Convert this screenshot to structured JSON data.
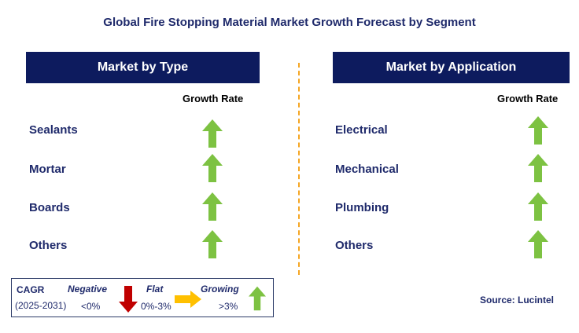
{
  "title": "Global Fire Stopping Material Market Growth Forecast by Segment",
  "left_panel": {
    "header": "Market by Type",
    "growth_label": "Growth Rate",
    "items": [
      {
        "label": "Sealants",
        "trend": "growing"
      },
      {
        "label": "Mortar",
        "trend": "growing"
      },
      {
        "label": "Boards",
        "trend": "growing"
      },
      {
        "label": "Others",
        "trend": "growing"
      }
    ]
  },
  "right_panel": {
    "header": "Market by Application",
    "growth_label": "Growth Rate",
    "items": [
      {
        "label": "Electrical",
        "trend": "growing"
      },
      {
        "label": "Mechanical",
        "trend": "growing"
      },
      {
        "label": "Plumbing",
        "trend": "growing"
      },
      {
        "label": "Others",
        "trend": "growing"
      }
    ]
  },
  "legend": {
    "cagr_label": "CAGR",
    "period": "(2025-2031)",
    "negative_label": "Negative",
    "negative_range": "<0%",
    "flat_label": "Flat",
    "flat_range": "0%-3%",
    "growing_label": "Growing",
    "growing_range": ">3%"
  },
  "source": "Source: Lucintel",
  "colors": {
    "header_bg": "#0d1b5e",
    "title_text": "#1f2a6b",
    "growing_arrow": "#7dc242",
    "negative_arrow": "#c00000",
    "flat_arrow": "#ffc000",
    "divider": "#f5a623"
  }
}
